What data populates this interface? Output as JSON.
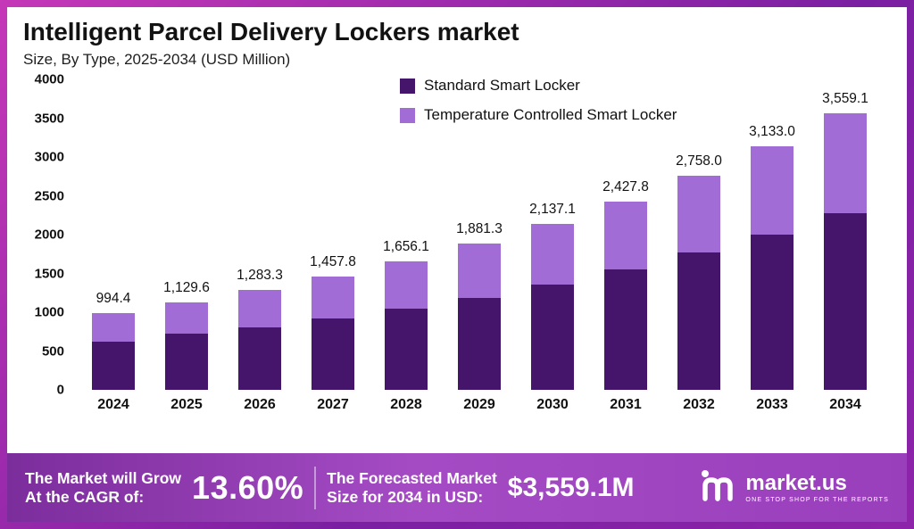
{
  "header": {
    "title": "Intelligent Parcel Delivery Lockers market",
    "subtitle": "Size, By Type, 2025-2034 (USD Million)"
  },
  "legend": [
    {
      "label": "Standard Smart Locker",
      "color": "#45156b"
    },
    {
      "label": "Temperature Controlled Smart Locker",
      "color": "#a16cd6"
    }
  ],
  "chart_data": {
    "type": "bar",
    "stacked": true,
    "title": "Intelligent Parcel Delivery Lockers market Size, By Type, 2025-2034 (USD Million)",
    "categories": [
      "2024",
      "2025",
      "2026",
      "2027",
      "2028",
      "2029",
      "2030",
      "2031",
      "2032",
      "2033",
      "2034"
    ],
    "series": [
      {
        "name": "Standard Smart Locker",
        "color": "#45156b",
        "values": [
          620.0,
          724.0,
          805.0,
          920.0,
          1046.0,
          1184.0,
          1356.0,
          1552.0,
          1770.0,
          2000.0,
          2276.0
        ]
      },
      {
        "name": "Temperature Controlled Smart Locker",
        "color": "#a16cd6",
        "values": [
          374.4,
          405.6,
          478.3,
          537.8,
          610.1,
          697.3,
          781.1,
          875.8,
          988.0,
          1133.0,
          1283.1
        ]
      }
    ],
    "totals": [
      994.4,
      1129.6,
      1283.3,
      1457.8,
      1656.1,
      1881.3,
      2137.1,
      2427.8,
      2758.0,
      3133.0,
      3559.1
    ],
    "total_labels": [
      "994.4",
      "1,129.6",
      "1,283.3",
      "1,457.8",
      "1,656.1",
      "1,881.3",
      "2,137.1",
      "2,427.8",
      "2,758.0",
      "3,133.0",
      "3,559.1"
    ],
    "ylim": [
      0,
      4000
    ],
    "yticks": [
      0,
      500,
      1000,
      1500,
      2000,
      2500,
      3000,
      3500,
      4000
    ],
    "legend_position": "top-right",
    "grid": false
  },
  "footer": {
    "cagr_line1": "The Market will Grow",
    "cagr_line2": "At the CAGR of:",
    "cagr_value": "13.60%",
    "forecast_line1": "The Forecasted Market",
    "forecast_line2": "Size for 2034 in USD:",
    "forecast_value": "$3,559.1M",
    "brand": "market.us",
    "brand_tagline": "ONE STOP SHOP FOR THE REPORTS"
  }
}
